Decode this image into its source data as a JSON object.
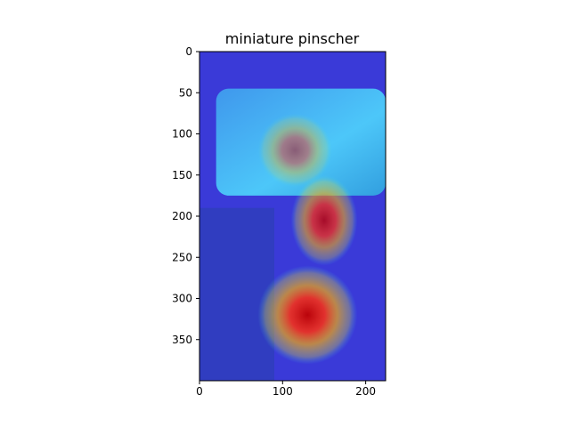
{
  "chart_data": {
    "type": "heatmap",
    "title": "miniature pinscher",
    "xlabel": "",
    "ylabel": "",
    "xlim": [
      0,
      224
    ],
    "ylim": [
      400,
      0
    ],
    "xticks": [
      0,
      100,
      200
    ],
    "yticks": [
      0,
      50,
      100,
      150,
      200,
      250,
      300,
      350
    ],
    "grid": false,
    "legend": "none",
    "colormap": "jet",
    "overlay": "activation heatmap over photo of a dog sitting in a car seat",
    "hotspots": [
      {
        "x": 150,
        "y": 205,
        "intensity": 0.85,
        "rx": 40,
        "ry": 55
      },
      {
        "x": 130,
        "y": 320,
        "intensity": 1.0,
        "rx": 60,
        "ry": 60
      },
      {
        "x": 115,
        "y": 120,
        "intensity": 0.55,
        "rx": 45,
        "ry": 45
      }
    ],
    "colors": {
      "cold": "#3a3ad8",
      "cool": "#2ec7f0",
      "mid": "#c8c832",
      "warm": "#ffa000",
      "hot": "#d21414"
    }
  }
}
